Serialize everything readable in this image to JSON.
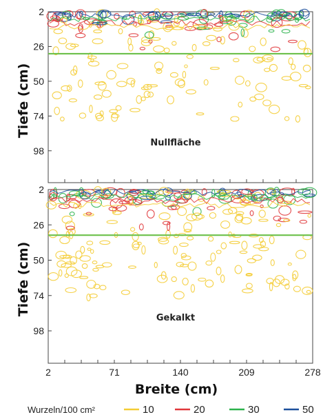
{
  "chart_data": [
    {
      "type": "contour",
      "panel_label": "Nullfläche",
      "ylabel": "Tiefe (cm)",
      "y_ticks": [
        2,
        26,
        50,
        74,
        98
      ],
      "y_axis": "inverted",
      "x_ticks": [
        2,
        71,
        140,
        209,
        278
      ],
      "horizontal_line_depth": 31,
      "horizontal_line_color": "#6cc04a"
    },
    {
      "type": "contour",
      "panel_label": "Gekalkt",
      "ylabel": "Tiefe (cm)",
      "y_ticks": [
        2,
        26,
        50,
        74,
        98
      ],
      "y_axis": "inverted",
      "x_ticks": [
        2,
        71,
        140,
        209,
        278
      ],
      "xlabel": "Breite (cm)",
      "horizontal_line_depth": 33,
      "horizontal_line_color": "#6cc04a"
    }
  ],
  "legend": {
    "title": "Wurzeln/100 cm²",
    "items": [
      {
        "label": "10",
        "color": "#f4cc34"
      },
      {
        "label": "20",
        "color": "#e0373a"
      },
      {
        "label": "30",
        "color": "#2bb24c"
      },
      {
        "label": "50",
        "color": "#1c4f9c"
      }
    ]
  }
}
